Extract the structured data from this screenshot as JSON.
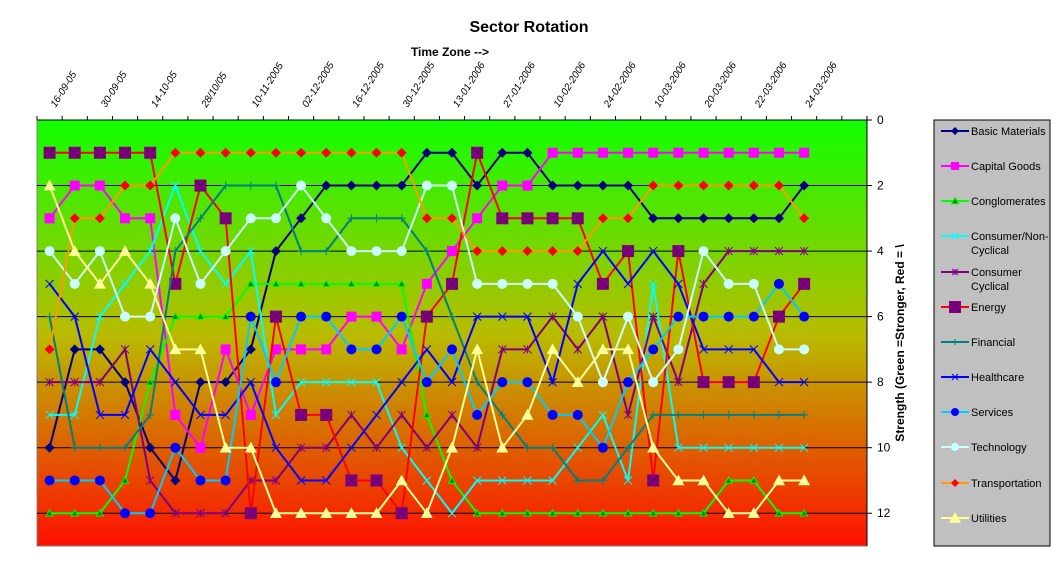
{
  "chart_data": {
    "type": "line",
    "title": "Sector Rotation",
    "xlabel": "Time Zone -->",
    "ylabel": "Strength (Green =Stronger, Red = \\",
    "x_tick_labels": [
      "16-09-05",
      "30-09-05",
      "14-10-05",
      "28/10/05",
      "10-11-2005",
      "02-12-2005",
      "16-12-2005",
      "30-12-2005",
      "13-01-2006",
      "27-01-2006",
      "10-02-2006",
      "24-02-2006",
      "10-03-2006",
      "20-03-2006",
      "22-03-2006",
      "24-03-2006"
    ],
    "ylim": [
      0,
      13
    ],
    "y_reversed": true,
    "y_ticks": [
      0,
      2,
      4,
      6,
      8,
      10,
      12
    ],
    "y_axis_side": "right",
    "x_axis_side": "top",
    "grid": "horizontal",
    "background": "vertical gradient green (top) to red (bottom)",
    "background_colors": [
      "#10ff00",
      "#b8bc00",
      "#ff1000"
    ],
    "legend_placement": "right",
    "series": [
      {
        "name": "Basic Materials",
        "color": "#000080",
        "marker_color": "#000080",
        "marker": "diamond",
        "values": [
          10,
          7,
          7,
          8,
          10,
          11,
          8,
          8,
          7,
          4,
          3,
          2,
          2,
          2,
          2,
          1,
          1,
          2,
          1,
          1,
          2,
          2,
          2,
          2,
          3,
          3,
          3,
          3,
          3,
          3,
          2
        ]
      },
      {
        "name": "Capital Goods",
        "color": "#ff00ff",
        "marker_color": "#ff00ff",
        "marker": "square",
        "values": [
          3,
          2,
          2,
          3,
          3,
          9,
          10,
          7,
          9,
          7,
          7,
          7,
          6,
          6,
          7,
          5,
          4,
          3,
          2,
          2,
          1,
          1,
          1,
          1,
          1,
          1,
          1,
          1,
          1,
          1,
          1
        ]
      },
      {
        "name": "Conglomerates",
        "color": "#00ff00",
        "marker_color": "#008000",
        "marker": "triangle",
        "values": [
          12,
          12,
          12,
          11,
          8,
          6,
          6,
          6,
          5,
          5,
          5,
          5,
          5,
          5,
          5,
          9,
          11,
          12,
          12,
          12,
          12,
          12,
          12,
          12,
          12,
          12,
          12,
          11,
          11,
          12,
          12
        ]
      },
      {
        "name": "Consumer/Non-Cyclical",
        "color": "#00ffff",
        "marker_color": "#00ffff",
        "marker": "x",
        "values": [
          9,
          9,
          6,
          5,
          4,
          2,
          4,
          5,
          4,
          9,
          8,
          8,
          8,
          8,
          10,
          11,
          12,
          11,
          11,
          11,
          11,
          10,
          9,
          11,
          5,
          10,
          10,
          10,
          10,
          10,
          10
        ]
      },
      {
        "name": "Consumer Cyclical",
        "color": "#800080",
        "marker_color": "#800080",
        "marker": "asterisk",
        "values": [
          8,
          8,
          8,
          7,
          11,
          12,
          12,
          12,
          11,
          11,
          10,
          10,
          9,
          10,
          9,
          10,
          9,
          10,
          7,
          7,
          6,
          7,
          6,
          9,
          6,
          8,
          5,
          4,
          4,
          4,
          4
        ]
      },
      {
        "name": "Energy",
        "color": "#ff0000",
        "marker_color": "#800080",
        "marker": "square-x",
        "values": [
          1,
          1,
          1,
          1,
          1,
          5,
          2,
          3,
          12,
          6,
          9,
          9,
          11,
          11,
          12,
          6,
          5,
          1,
          3,
          3,
          3,
          3,
          5,
          4,
          11,
          4,
          8,
          8,
          8,
          6,
          5
        ]
      },
      {
        "name": "Financial",
        "color": "#008080",
        "marker_color": "#008080",
        "marker": "plus",
        "values": [
          6,
          10,
          10,
          10,
          9,
          4,
          3,
          2,
          2,
          2,
          4,
          4,
          3,
          3,
          3,
          4,
          6,
          8,
          9,
          10,
          10,
          11,
          11,
          10,
          9,
          9,
          9,
          9,
          9,
          9,
          9
        ]
      },
      {
        "name": "Healthcare",
        "color": "#0000ff",
        "marker_color": "#0000ff",
        "marker": "x",
        "values": [
          5,
          6,
          9,
          9,
          7,
          8,
          9,
          9,
          8,
          10,
          11,
          11,
          10,
          9,
          8,
          7,
          8,
          6,
          6,
          6,
          8,
          5,
          4,
          5,
          4,
          5,
          7,
          7,
          7,
          8,
          8
        ]
      },
      {
        "name": "Services",
        "color": "#00ccff",
        "marker_color": "#0000ff",
        "marker": "circle",
        "values": [
          11,
          11,
          11,
          12,
          12,
          10,
          11,
          11,
          6,
          8,
          6,
          6,
          7,
          7,
          6,
          8,
          7,
          9,
          8,
          8,
          9,
          9,
          10,
          8,
          7,
          6,
          6,
          6,
          6,
          5,
          6
        ]
      },
      {
        "name": "Technology",
        "color": "#ccffff",
        "marker_color": "#ccffff",
        "marker": "circle",
        "values": [
          4,
          5,
          4,
          6,
          6,
          3,
          5,
          4,
          3,
          3,
          2,
          3,
          4,
          4,
          4,
          2,
          2,
          5,
          5,
          5,
          5,
          6,
          8,
          6,
          8,
          7,
          4,
          5,
          5,
          7,
          7
        ]
      },
      {
        "name": "Transportation",
        "color": "#ff9900",
        "marker_color": "#ff0000",
        "marker": "diamond",
        "values": [
          7,
          3,
          3,
          2,
          2,
          1,
          1,
          1,
          1,
          1,
          1,
          1,
          1,
          1,
          1,
          3,
          3,
          4,
          4,
          4,
          4,
          4,
          3,
          3,
          2,
          2,
          2,
          2,
          2,
          2,
          3
        ]
      },
      {
        "name": "Utilities",
        "color": "#ffff99",
        "marker_color": "#ffff99",
        "marker": "triangle",
        "values": [
          2,
          4,
          5,
          4,
          5,
          7,
          7,
          10,
          10,
          12,
          12,
          12,
          12,
          12,
          11,
          12,
          10,
          7,
          10,
          9,
          7,
          8,
          7,
          7,
          10,
          11,
          11,
          12,
          12,
          11,
          11
        ]
      }
    ]
  }
}
